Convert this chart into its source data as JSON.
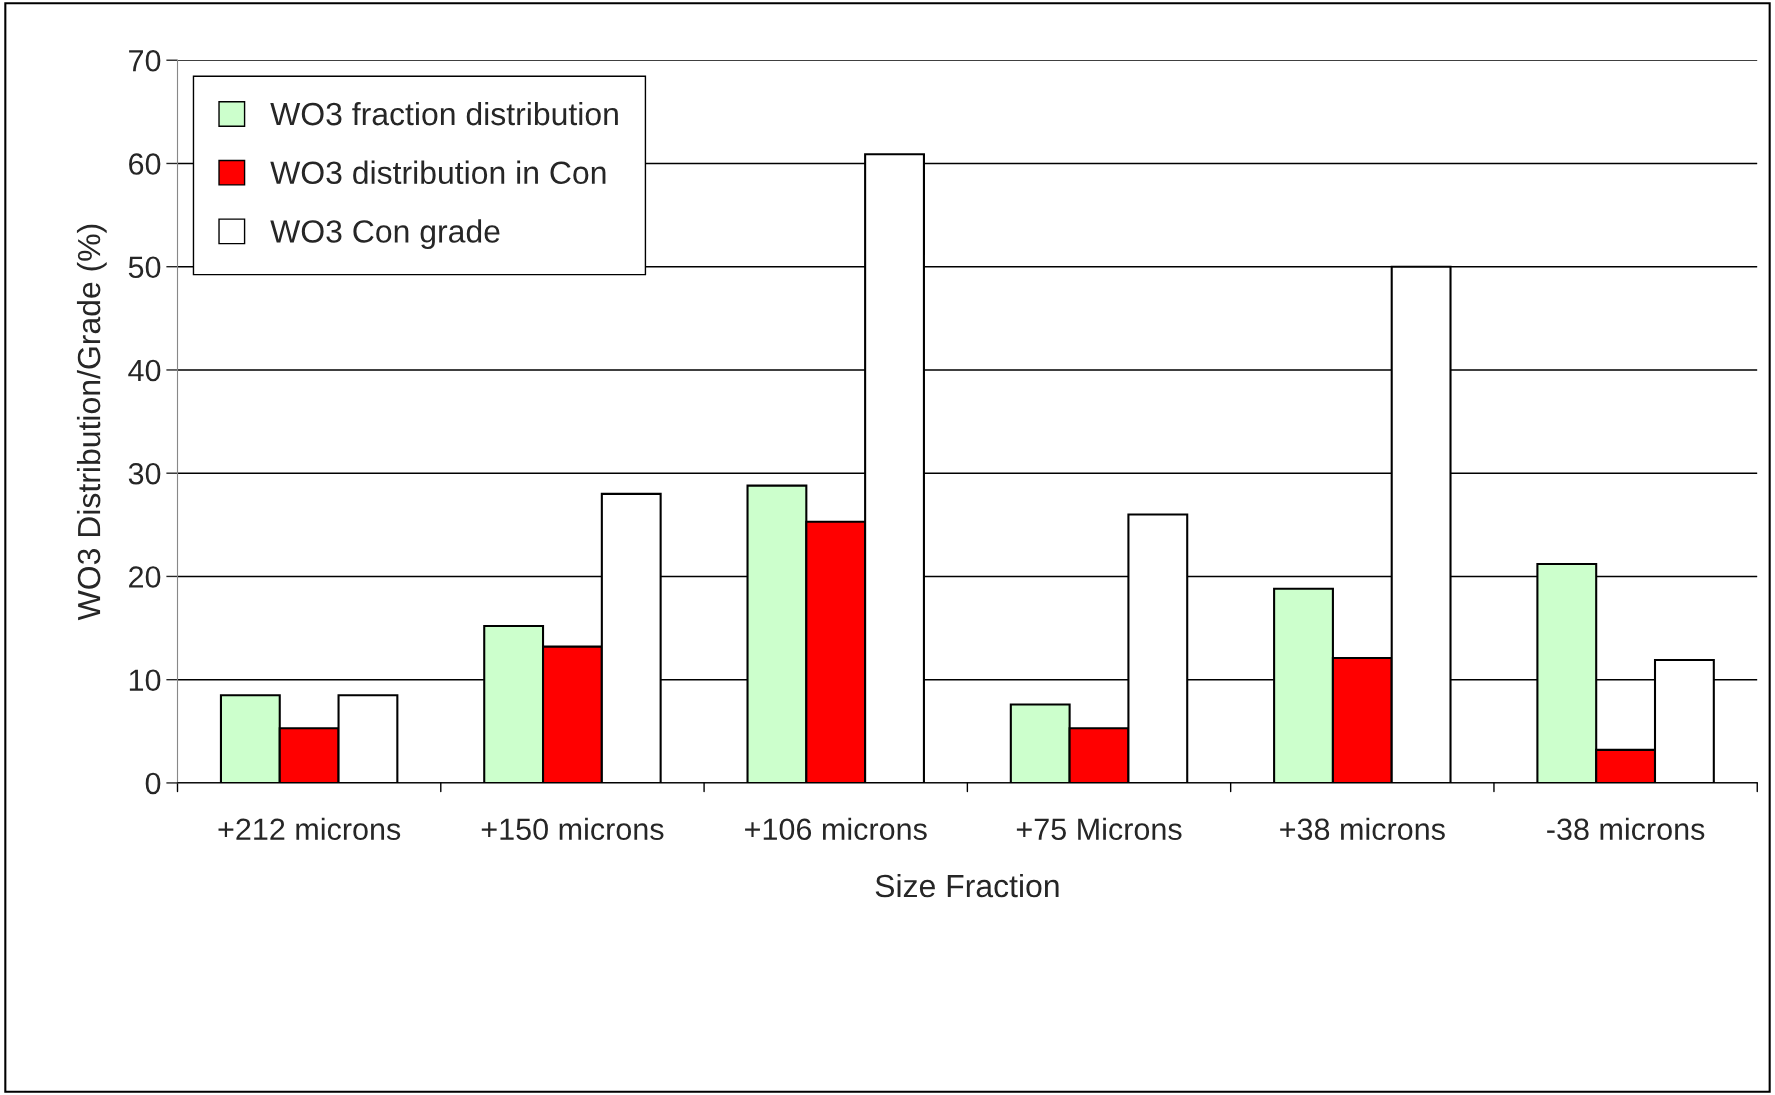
{
  "chart_data": {
    "type": "bar",
    "xlabel": "Size Fraction",
    "ylabel": "WO3 Distribution/Grade (%)",
    "categories": [
      "+212 microns",
      "+150 microns",
      "+106 microns",
      "+75 Microns",
      "+38 microns",
      "-38 microns"
    ],
    "series": [
      {
        "name": "WO3 fraction distribution",
        "color": "#ccffcc",
        "values": [
          8.5,
          15.2,
          28.8,
          7.6,
          18.8,
          21.2
        ]
      },
      {
        "name": "WO3 distribution in Con",
        "color": "#ff0000",
        "values": [
          5.3,
          13.2,
          25.3,
          5.3,
          12.1,
          3.2
        ]
      },
      {
        "name": "WO3 Con grade",
        "color": "#ffffff",
        "values": [
          8.5,
          28.0,
          60.9,
          26.0,
          50.0,
          11.9
        ]
      }
    ],
    "ylim": [
      0,
      70
    ],
    "yticks": [
      0,
      10,
      20,
      30,
      40,
      50,
      60,
      70
    ],
    "grid": "y",
    "legend": "top left"
  }
}
